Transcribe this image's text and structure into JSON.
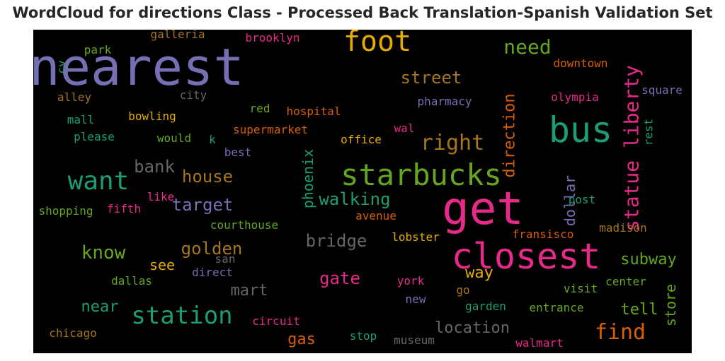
{
  "title": "WordCloud for directions Class - Processed Back Translation-Spanish Validation Set",
  "chart_data": {
    "type": "wordcloud",
    "background": "#000000",
    "words": [
      {
        "text": "nearest",
        "color": "#7570b3",
        "size": 72,
        "rotated": false
      },
      {
        "text": "get",
        "color": "#e7298a",
        "size": 64,
        "rotated": false
      },
      {
        "text": "closest",
        "color": "#e7298a",
        "size": 50,
        "rotated": false
      },
      {
        "text": "bus",
        "color": "#1b9e77",
        "size": 50,
        "rotated": false
      },
      {
        "text": "starbucks",
        "color": "#66a61e",
        "size": 42,
        "rotated": false
      },
      {
        "text": "foot",
        "color": "#e6ab02",
        "size": 40,
        "rotated": false
      },
      {
        "text": "want",
        "color": "#1b9e77",
        "size": 36,
        "rotated": false
      },
      {
        "text": "station",
        "color": "#1b9e77",
        "size": 34,
        "rotated": false
      },
      {
        "text": "statue liberty",
        "color": "#e7298a",
        "size": 28,
        "rotated": true
      },
      {
        "text": "find",
        "color": "#d95f02",
        "size": 30,
        "rotated": false
      },
      {
        "text": "right",
        "color": "#a6761d",
        "size": 30,
        "rotated": false
      },
      {
        "text": "need",
        "color": "#66a61e",
        "size": 28,
        "rotated": false
      },
      {
        "text": "know",
        "color": "#66a61e",
        "size": 26,
        "rotated": false
      },
      {
        "text": "walking",
        "color": "#1b9e77",
        "size": 24,
        "rotated": false
      },
      {
        "text": "street",
        "color": "#a6761d",
        "size": 24,
        "rotated": false
      },
      {
        "text": "direction",
        "color": "#d95f02",
        "size": 22,
        "rotated": true
      },
      {
        "text": "bridge",
        "color": "#666666",
        "size": 24,
        "rotated": false
      },
      {
        "text": "golden",
        "color": "#a6761d",
        "size": 24,
        "rotated": false
      },
      {
        "text": "house",
        "color": "#a6761d",
        "size": 24,
        "rotated": false
      },
      {
        "text": "bank",
        "color": "#666666",
        "size": 24,
        "rotated": false
      },
      {
        "text": "target",
        "color": "#7570b3",
        "size": 24,
        "rotated": false
      },
      {
        "text": "gate",
        "color": "#e7298a",
        "size": 24,
        "rotated": false
      },
      {
        "text": "location",
        "color": "#666666",
        "size": 22,
        "rotated": false
      },
      {
        "text": "subway",
        "color": "#66a61e",
        "size": 22,
        "rotated": false
      },
      {
        "text": "way",
        "color": "#e6ab02",
        "size": 22,
        "rotated": false
      },
      {
        "text": "near",
        "color": "#1b9e77",
        "size": 22,
        "rotated": false
      },
      {
        "text": "mart",
        "color": "#666666",
        "size": 22,
        "rotated": false
      },
      {
        "text": "tell",
        "color": "#66a61e",
        "size": 22,
        "rotated": false
      },
      {
        "text": "gas",
        "color": "#d95f02",
        "size": 22,
        "rotated": false
      },
      {
        "text": "store",
        "color": "#66a61e",
        "size": 20,
        "rotated": true
      },
      {
        "text": "see",
        "color": "#e6ab02",
        "size": 20,
        "rotated": false
      },
      {
        "text": "phoenix",
        "color": "#1b9e77",
        "size": 20,
        "rotated": true
      },
      {
        "text": "dollar",
        "color": "#7570b3",
        "size": 20,
        "rotated": true
      },
      {
        "text": "downtown",
        "color": "#d95f02",
        "size": 16,
        "rotated": false
      },
      {
        "text": "olympia",
        "color": "#e7298a",
        "size": 16,
        "rotated": false
      },
      {
        "text": "square",
        "color": "#7570b3",
        "size": 16,
        "rotated": false
      },
      {
        "text": "pharmacy",
        "color": "#7570b3",
        "size": 16,
        "rotated": false
      },
      {
        "text": "hospital",
        "color": "#d95f02",
        "size": 16,
        "rotated": false
      },
      {
        "text": "supermarket",
        "color": "#d95f02",
        "size": 16,
        "rotated": false
      },
      {
        "text": "office",
        "color": "#e6ab02",
        "size": 16,
        "rotated": false
      },
      {
        "text": "wal",
        "color": "#e7298a",
        "size": 16,
        "rotated": false
      },
      {
        "text": "rest",
        "color": "#1b9e77",
        "size": 16,
        "rotated": true
      },
      {
        "text": "galleria",
        "color": "#a6761d",
        "size": 16,
        "rotated": false
      },
      {
        "text": "brooklyn",
        "color": "#e7298a",
        "size": 16,
        "rotated": false
      },
      {
        "text": "park",
        "color": "#66a61e",
        "size": 16,
        "rotated": false
      },
      {
        "text": "cv",
        "color": "#1b9e77",
        "size": 16,
        "rotated": true
      },
      {
        "text": "alley",
        "color": "#a6761d",
        "size": 16,
        "rotated": false
      },
      {
        "text": "city",
        "color": "#666666",
        "size": 16,
        "rotated": false
      },
      {
        "text": "mall",
        "color": "#1b9e77",
        "size": 16,
        "rotated": false
      },
      {
        "text": "bowling",
        "color": "#e6ab02",
        "size": 16,
        "rotated": false
      },
      {
        "text": "red",
        "color": "#66a61e",
        "size": 16,
        "rotated": false
      },
      {
        "text": "please",
        "color": "#1b9e77",
        "size": 16,
        "rotated": false
      },
      {
        "text": "would",
        "color": "#66a61e",
        "size": 16,
        "rotated": false
      },
      {
        "text": "k",
        "color": "#1b9e77",
        "size": 16,
        "rotated": false
      },
      {
        "text": "best",
        "color": "#7570b3",
        "size": 16,
        "rotated": false
      },
      {
        "text": "like",
        "color": "#e7298a",
        "size": 16,
        "rotated": false
      },
      {
        "text": "fifth",
        "color": "#e7298a",
        "size": 16,
        "rotated": false
      },
      {
        "text": "shopping",
        "color": "#66a61e",
        "size": 16,
        "rotated": false
      },
      {
        "text": "post",
        "color": "#1b9e77",
        "size": 16,
        "rotated": false
      },
      {
        "text": "avenue",
        "color": "#d95f02",
        "size": 16,
        "rotated": false
      },
      {
        "text": "courthouse",
        "color": "#66a61e",
        "size": 16,
        "rotated": false
      },
      {
        "text": "lobster",
        "color": "#e6ab02",
        "size": 16,
        "rotated": false
      },
      {
        "text": "fransisco",
        "color": "#d95f02",
        "size": 16,
        "rotated": false
      },
      {
        "text": "madison",
        "color": "#a6761d",
        "size": 16,
        "rotated": false
      },
      {
        "text": "san",
        "color": "#666666",
        "size": 16,
        "rotated": false
      },
      {
        "text": "direct",
        "color": "#7570b3",
        "size": 16,
        "rotated": false
      },
      {
        "text": "dallas",
        "color": "#66a61e",
        "size": 16,
        "rotated": false
      },
      {
        "text": "york",
        "color": "#e7298a",
        "size": 16,
        "rotated": false
      },
      {
        "text": "go",
        "color": "#a6761d",
        "size": 16,
        "rotated": false
      },
      {
        "text": "visit",
        "color": "#66a61e",
        "size": 16,
        "rotated": false
      },
      {
        "text": "center",
        "color": "#66a61e",
        "size": 16,
        "rotated": false
      },
      {
        "text": "new",
        "color": "#7570b3",
        "size": 16,
        "rotated": false
      },
      {
        "text": "garden",
        "color": "#1b9e77",
        "size": 16,
        "rotated": false
      },
      {
        "text": "entrance",
        "color": "#66a61e",
        "size": 16,
        "rotated": false
      },
      {
        "text": "circuit",
        "color": "#e7298a",
        "size": 16,
        "rotated": false
      },
      {
        "text": "chicago",
        "color": "#a6761d",
        "size": 16,
        "rotated": false
      },
      {
        "text": "stop",
        "color": "#1b9e77",
        "size": 16,
        "rotated": false
      },
      {
        "text": "museum",
        "color": "#666666",
        "size": 16,
        "rotated": false
      },
      {
        "text": "walmart",
        "color": "#e7298a",
        "size": 16,
        "rotated": false
      }
    ]
  }
}
